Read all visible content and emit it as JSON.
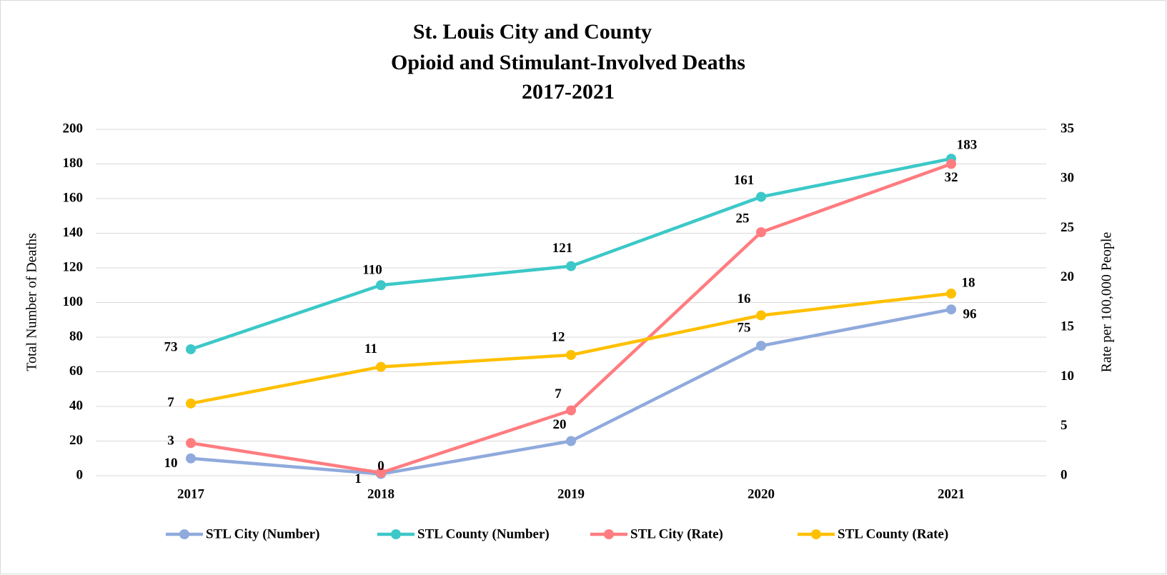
{
  "chart_data": {
    "type": "line",
    "title": [
      "St. Louis City and County",
      "Opioid and Stimulant-Involved Deaths",
      "2017-2021"
    ],
    "categories": [
      "2017",
      "2018",
      "2019",
      "2020",
      "2021"
    ],
    "y_label": "Total Number of Deaths",
    "y2_label": "Rate per 100,000 People",
    "ylim": [
      0,
      200
    ],
    "yticks": [
      0,
      20,
      40,
      60,
      80,
      100,
      120,
      140,
      160,
      180,
      200
    ],
    "y2lim": [
      0,
      35
    ],
    "y2ticks": [
      0,
      5,
      10,
      15,
      20,
      25,
      30,
      35
    ],
    "grid": true,
    "legend": "bottom",
    "series": [
      {
        "name": "STL City (Number)",
        "color": "#8faadc",
        "values": [
          10,
          1,
          20,
          75,
          96
        ]
      },
      {
        "name": "STL County (Number)",
        "color": "#3cc8c8",
        "values": [
          73,
          110,
          121,
          161,
          183
        ]
      },
      {
        "name": "STL City (Rate)",
        "color": "#ff7c80",
        "axis": "y2",
        "values": [
          3.3,
          0.3,
          6.6,
          24.6,
          31.5
        ],
        "value_labels": [
          "3",
          "0",
          "7",
          "25",
          "32"
        ]
      },
      {
        "name": "STL County (Rate)",
        "color": "#ffc000",
        "axis": "y2",
        "values": [
          7.3,
          11.0,
          12.2,
          16.2,
          18.4
        ],
        "value_labels": [
          "7",
          "11",
          "12",
          "16",
          "18"
        ]
      }
    ]
  }
}
